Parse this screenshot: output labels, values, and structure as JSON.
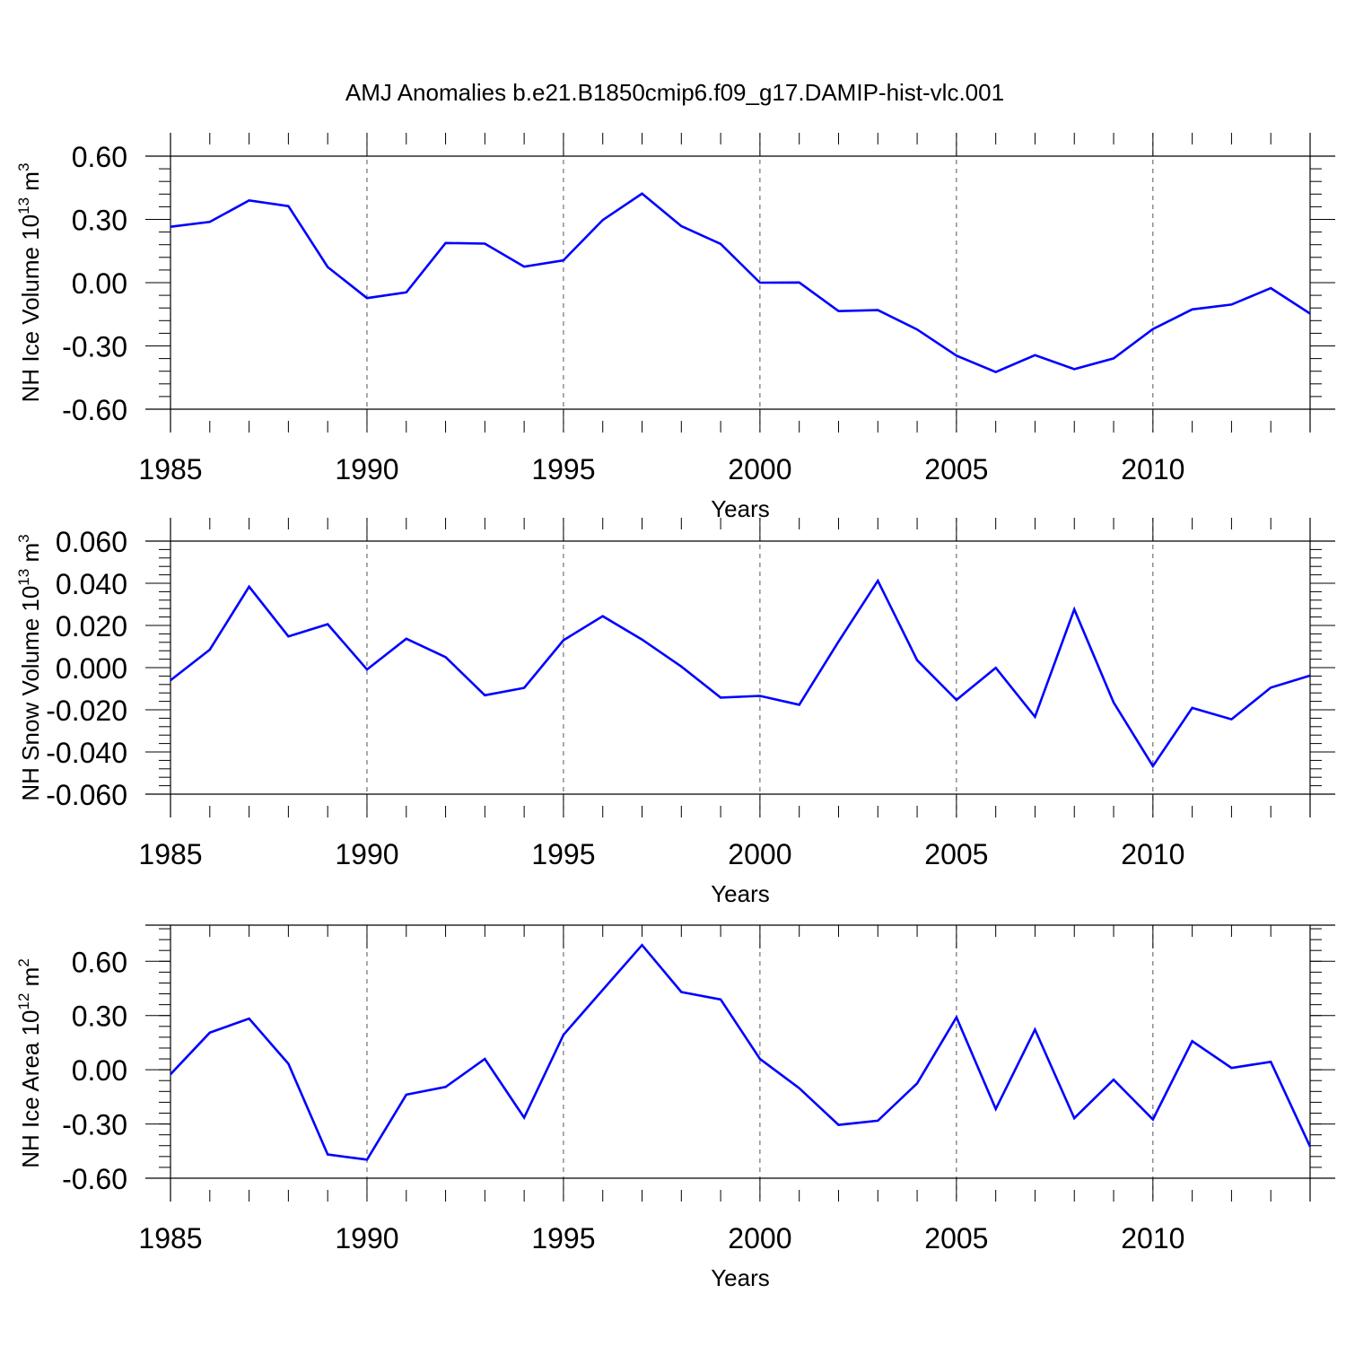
{
  "figure": {
    "title": "AMJ Anomalies b.e21.B1850cmip6.f09_g17.DAMIP-hist-vlc.001"
  },
  "colors": {
    "series": "#0000ff",
    "axis": "#000000",
    "grid": "#555555"
  },
  "chart_data": [
    {
      "type": "line",
      "ylabel": "NH Ice Volume 10",
      "ylabel_sup": "13",
      "ylabel_unit": "m",
      "ylabel_unit_sup": "3",
      "xlabel": "Years",
      "xlim": [
        1985,
        2014
      ],
      "ylim": [
        -0.6,
        0.6
      ],
      "x_tick_labels": [
        "1985",
        "1990",
        "1995",
        "2000",
        "2005",
        "2010"
      ],
      "y_tick_labels": [
        "0.60",
        "0.30",
        "0.00",
        "-0.30",
        "-0.60"
      ],
      "y_tick_values": [
        0.6,
        0.3,
        0.0,
        -0.3,
        -0.6
      ],
      "grid": "vertical dashed at major x ticks",
      "series": [
        {
          "x": [
            1985,
            1986,
            1987,
            1988,
            1989,
            1990,
            1991,
            1992,
            1993,
            1994,
            1995,
            1996,
            1997,
            1998,
            1999,
            2000,
            2001,
            2002,
            2003,
            2004,
            2005,
            2006,
            2007,
            2008,
            2009,
            2010,
            2011,
            2012,
            2013,
            2014
          ],
          "values": [
            0.265,
            0.288,
            0.39,
            0.363,
            0.074,
            -0.073,
            -0.046,
            0.188,
            0.185,
            0.076,
            0.106,
            0.297,
            0.422,
            0.268,
            0.184,
            0.0,
            0.001,
            -0.135,
            -0.13,
            -0.222,
            -0.346,
            -0.424,
            -0.344,
            -0.41,
            -0.359,
            -0.22,
            -0.127,
            -0.104,
            -0.026,
            -0.147
          ]
        }
      ]
    },
    {
      "type": "line",
      "ylabel": "NH Snow Volume 10",
      "ylabel_sup": "13",
      "ylabel_unit": "m",
      "ylabel_unit_sup": "3",
      "xlabel": "Years",
      "xlim": [
        1985,
        2014
      ],
      "ylim": [
        -0.06,
        0.06
      ],
      "x_tick_labels": [
        "1985",
        "1990",
        "1995",
        "2000",
        "2005",
        "2010"
      ],
      "y_tick_labels": [
        "0.060",
        "0.040",
        "0.020",
        "0.000",
        "-0.020",
        "-0.040",
        "-0.060"
      ],
      "y_tick_values": [
        0.06,
        0.04,
        0.02,
        0.0,
        -0.02,
        -0.04,
        -0.06
      ],
      "grid": "vertical dashed at major x ticks",
      "series": [
        {
          "x": [
            1985,
            1986,
            1987,
            1988,
            1989,
            1990,
            1991,
            1992,
            1993,
            1994,
            1995,
            1996,
            1997,
            1998,
            1999,
            2000,
            2001,
            2002,
            2003,
            2004,
            2005,
            2006,
            2007,
            2008,
            2009,
            2010,
            2011,
            2012,
            2013,
            2014
          ],
          "values": [
            -0.006,
            0.0085,
            0.0384,
            0.0148,
            0.0206,
            -0.0009,
            0.0137,
            0.005,
            -0.0131,
            -0.0096,
            0.013,
            0.0244,
            0.0133,
            0.0005,
            -0.0142,
            -0.0134,
            -0.0176,
            0.0124,
            0.0412,
            0.0035,
            -0.0153,
            -0.0001,
            -0.0233,
            0.0276,
            -0.0165,
            -0.0467,
            -0.0191,
            -0.0245,
            -0.0095,
            -0.0038
          ]
        }
      ]
    },
    {
      "type": "line",
      "ylabel": "NH Ice Area 10",
      "ylabel_sup": "12",
      "ylabel_unit": "m",
      "ylabel_unit_sup": "2",
      "xlabel": "Years",
      "xlim": [
        1985,
        2014
      ],
      "ylim": [
        -0.6,
        0.8
      ],
      "x_tick_labels": [
        "1985",
        "1990",
        "1995",
        "2000",
        "2005",
        "2010"
      ],
      "y_tick_labels": [
        "0.60",
        "0.30",
        "0.00",
        "-0.30",
        "-0.60"
      ],
      "y_tick_values": [
        0.6,
        0.3,
        0.0,
        -0.3,
        -0.6
      ],
      "grid": "vertical dashed at major x ticks",
      "series": [
        {
          "x": [
            1985,
            1986,
            1987,
            1988,
            1989,
            1990,
            1991,
            1992,
            1993,
            1994,
            1995,
            1996,
            1997,
            1998,
            1999,
            2000,
            2001,
            2002,
            2003,
            2004,
            2005,
            2006,
            2007,
            2008,
            2009,
            2010,
            2011,
            2012,
            2013,
            2014
          ],
          "values": [
            -0.025,
            0.205,
            0.283,
            0.033,
            -0.469,
            -0.497,
            -0.138,
            -0.095,
            0.06,
            -0.265,
            0.193,
            0.442,
            0.69,
            0.43,
            0.389,
            0.06,
            -0.102,
            -0.305,
            -0.282,
            -0.075,
            0.29,
            -0.217,
            0.222,
            -0.268,
            -0.055,
            -0.275,
            0.158,
            0.01,
            0.044,
            -0.425
          ]
        }
      ]
    }
  ]
}
